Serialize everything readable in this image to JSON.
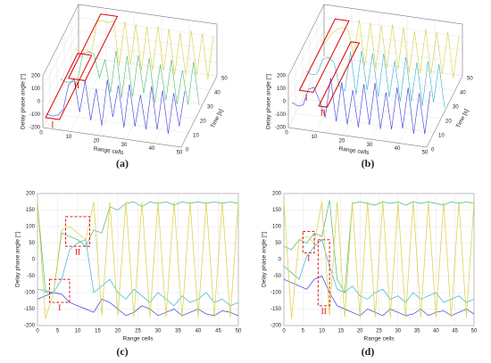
{
  "chart_data": [
    {
      "type": "line3d",
      "caption": "(a)",
      "xlabel": "Range cells",
      "ylabel": "Time [s]",
      "zlabel": "Delay phase angle [°]",
      "xlim": [
        0,
        50
      ],
      "xticks": [
        0,
        10,
        20,
        30,
        40,
        50
      ],
      "ylim": [
        0,
        50
      ],
      "yticks": [
        0,
        10,
        20,
        30,
        40,
        50
      ],
      "zlim": [
        -200,
        200
      ],
      "zticks": [
        -200,
        -100,
        0,
        100,
        200
      ],
      "grid": true,
      "x": [
        0,
        2,
        4,
        6,
        8,
        10,
        12,
        14,
        16,
        18,
        20,
        22,
        24,
        26,
        28,
        30,
        32,
        34,
        36,
        38,
        40,
        42,
        44,
        46,
        48,
        50
      ],
      "series": [
        {
          "time": 5,
          "color": "#3a3adc",
          "values": [
            -150,
            -160,
            -150,
            -100,
            100,
            150,
            -100,
            150,
            -150,
            100,
            -180,
            180,
            -100,
            150,
            -170,
            170,
            -150,
            100,
            -160,
            180,
            -150,
            160,
            -170,
            150,
            -100,
            180
          ]
        },
        {
          "time": 25,
          "color": "#4cb870",
          "values": [
            -100,
            -120,
            -110,
            -100,
            120,
            140,
            130,
            -50,
            100,
            -150,
            180,
            -180,
            150,
            -160,
            170,
            -120,
            160,
            -180,
            120,
            -150,
            170,
            -170,
            100,
            -160,
            180,
            -150
          ]
        },
        {
          "time": 45,
          "color": "#d8cf3a",
          "values": [
            -90,
            -100,
            -80,
            -100,
            150,
            160,
            150,
            170,
            -170,
            180,
            -150,
            170,
            -180,
            160,
            -170,
            180,
            -160,
            170,
            -180,
            150,
            -170,
            180,
            -160,
            170,
            -180,
            160
          ]
        }
      ],
      "annotations": [
        {
          "label": "I",
          "x0": 1,
          "x1": 6,
          "t0": 0,
          "t1": 45,
          "z": -120
        },
        {
          "label": "II",
          "x0": 8,
          "x1": 14,
          "t0": 5,
          "t1": 50,
          "z": 150
        }
      ]
    },
    {
      "type": "line3d",
      "caption": "(b)",
      "xlabel": "Range cells",
      "ylabel": "Time [s]",
      "zlabel": "Delay phase angle [°]",
      "xlim": [
        0,
        50
      ],
      "xticks": [
        0,
        10,
        20,
        30,
        40,
        50
      ],
      "ylim": [
        0,
        50
      ],
      "yticks": [
        0,
        10,
        20,
        30,
        40,
        50
      ],
      "zlim": [
        -200,
        200
      ],
      "zticks": [
        -200,
        -100,
        0,
        100,
        200
      ],
      "grid": true,
      "x": [
        0,
        2,
        4,
        6,
        8,
        10,
        12,
        14,
        16,
        18,
        20,
        22,
        24,
        26,
        28,
        30,
        32,
        34,
        36,
        38,
        40,
        42,
        44,
        46,
        48,
        50
      ],
      "series": [
        {
          "time": 5,
          "color": "#3a3adc",
          "values": [
            -60,
            -80,
            -70,
            60,
            80,
            -20,
            -140,
            170,
            -160,
            150,
            -170,
            100,
            -180,
            160,
            -150,
            180,
            -170,
            120,
            -160,
            170,
            -140,
            180,
            -170,
            150,
            -160,
            180
          ]
        },
        {
          "time": 25,
          "color": "#36b0d0",
          "values": [
            -40,
            -60,
            -50,
            70,
            90,
            60,
            -120,
            -150,
            160,
            -170,
            180,
            -120,
            170,
            -160,
            180,
            -150,
            140,
            -170,
            180,
            -160,
            150,
            -180,
            170,
            -140,
            160,
            -170
          ]
        },
        {
          "time": 45,
          "color": "#d8cf3a",
          "values": [
            -20,
            -30,
            40,
            80,
            100,
            90,
            -100,
            180,
            -170,
            170,
            -180,
            160,
            -170,
            180,
            -160,
            170,
            -180,
            150,
            -170,
            180,
            -160,
            170,
            -150,
            180,
            -170,
            160
          ]
        }
      ],
      "annotations": [
        {
          "label": "I",
          "x0": 4,
          "x1": 9,
          "t0": 0,
          "t1": 50,
          "z": 100
        },
        {
          "label": "II",
          "x0": 11,
          "x1": 14,
          "t0": 0,
          "t1": 45,
          "z": 0
        }
      ]
    },
    {
      "type": "line",
      "caption": "(c)",
      "xlabel": "Range cells",
      "ylabel": "Delay phase angle [°]",
      "xlim": [
        0,
        50
      ],
      "xticks": [
        0,
        5,
        10,
        15,
        20,
        25,
        30,
        35,
        40,
        45,
        50
      ],
      "ylim": [
        -200,
        200
      ],
      "yticks": [
        -200,
        -150,
        -100,
        -50,
        0,
        50,
        100,
        150,
        200
      ],
      "grid": true,
      "x": [
        0,
        2,
        4,
        6,
        8,
        10,
        12,
        14,
        16,
        18,
        20,
        22,
        24,
        26,
        28,
        30,
        32,
        34,
        36,
        38,
        40,
        42,
        44,
        46,
        48,
        50
      ],
      "series": [
        {
          "color": "#3a3adc",
          "values": [
            -120,
            -110,
            -100,
            -105,
            -130,
            -140,
            -150,
            -160,
            -120,
            -130,
            -150,
            -170,
            -160,
            -140,
            -150,
            -170,
            -160,
            -150,
            -170,
            -160,
            -150,
            -165,
            -170,
            -155,
            -160,
            -170
          ]
        },
        {
          "color": "#36b0d0",
          "values": [
            -90,
            -95,
            -100,
            -60,
            30,
            50,
            60,
            -100,
            -80,
            -60,
            -100,
            -120,
            -90,
            -110,
            -130,
            -100,
            -120,
            -140,
            -110,
            -130,
            -120,
            -100,
            -130,
            -120,
            -140,
            -130
          ]
        },
        {
          "color": "#4cb870",
          "values": [
            170,
            -100,
            -100,
            80,
            70,
            60,
            40,
            90,
            80,
            160,
            150,
            170,
            175,
            160,
            175,
            170,
            175,
            165,
            175,
            170,
            175,
            170,
            175,
            170,
            175,
            170
          ]
        },
        {
          "color": "#d8cf3a",
          "values": [
            175,
            -180,
            -100,
            90,
            100,
            80,
            60,
            175,
            -170,
            175,
            -170,
            175,
            -175,
            175,
            -175,
            175,
            -175,
            175,
            -175,
            175,
            -175,
            175,
            -175,
            175,
            -175,
            175
          ]
        }
      ],
      "annotations": [
        {
          "label": "I",
          "x0": 3,
          "x1": 8,
          "y0": -130,
          "y1": -60
        },
        {
          "label": "II",
          "x0": 7,
          "x1": 13,
          "y0": 40,
          "y1": 130
        }
      ]
    },
    {
      "type": "line",
      "caption": "(d)",
      "xlabel": "Range cells",
      "ylabel": "Delay phase angle [°]",
      "xlim": [
        0,
        50
      ],
      "xticks": [
        0,
        5,
        10,
        15,
        20,
        25,
        30,
        35,
        40,
        45,
        50
      ],
      "ylim": [
        -200,
        200
      ],
      "yticks": [
        -200,
        -150,
        -100,
        -50,
        0,
        50,
        100,
        150,
        200
      ],
      "grid": true,
      "x": [
        0,
        2,
        4,
        6,
        8,
        10,
        12,
        14,
        16,
        18,
        20,
        22,
        24,
        26,
        28,
        30,
        32,
        34,
        36,
        38,
        40,
        42,
        44,
        46,
        48,
        50
      ],
      "series": [
        {
          "color": "#3a3adc",
          "values": [
            -60,
            -70,
            -80,
            -90,
            -60,
            -50,
            -100,
            -140,
            -150,
            -160,
            -170,
            -150,
            -160,
            -170,
            -150,
            -160,
            -170,
            -165,
            -150,
            -170,
            -160,
            -155,
            -170,
            -160,
            -150,
            -165
          ]
        },
        {
          "color": "#36b0d0",
          "values": [
            -20,
            -40,
            -60,
            10,
            40,
            60,
            -20,
            -90,
            -100,
            -80,
            -110,
            -120,
            -100,
            -90,
            -120,
            -110,
            -130,
            -100,
            -120,
            -110,
            -100,
            -130,
            -120,
            -110,
            -130,
            -120
          ]
        },
        {
          "color": "#4cb870",
          "values": [
            40,
            30,
            60,
            50,
            80,
            70,
            180,
            -60,
            -100,
            170,
            175,
            170,
            165,
            175,
            170,
            175,
            165,
            175,
            170,
            175,
            170,
            165,
            175,
            170,
            175,
            170
          ]
        },
        {
          "color": "#d8cf3a",
          "values": [
            175,
            -180,
            60,
            70,
            50,
            175,
            -170,
            175,
            -175,
            175,
            -175,
            175,
            -175,
            175,
            -175,
            175,
            -175,
            175,
            -175,
            175,
            -175,
            175,
            -175,
            175,
            -175,
            175
          ]
        }
      ],
      "annotations": [
        {
          "label": "I",
          "x0": 5,
          "x1": 8,
          "y0": 20,
          "y1": 85
        },
        {
          "label": "II",
          "x0": 9,
          "x1": 12,
          "y0": -140,
          "y1": 60
        }
      ]
    }
  ]
}
